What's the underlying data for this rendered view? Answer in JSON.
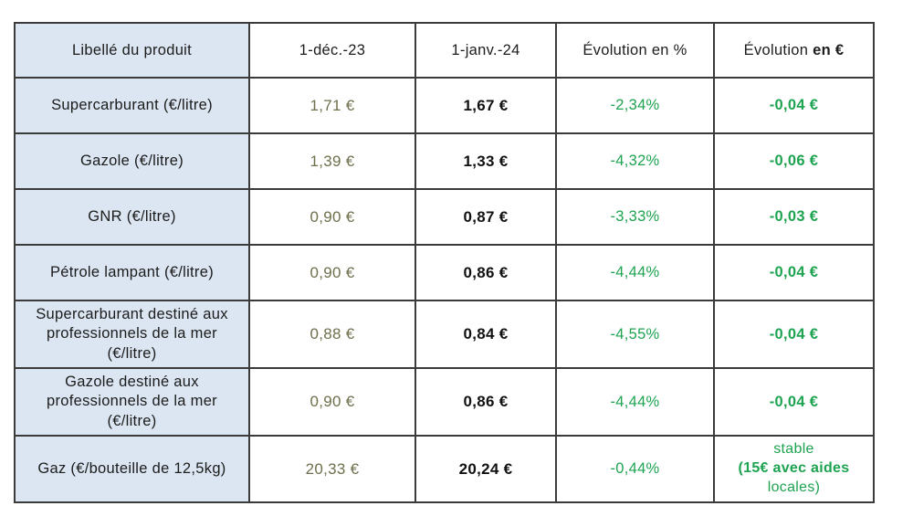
{
  "table": {
    "headers": {
      "product": "Libellé du produit",
      "date1": "1-déc.-23",
      "date2": "1-janv.-24",
      "evolution_pct": "Évolution en %",
      "evolution_eur_prefix": "Évolution ",
      "evolution_eur_bold": "en €"
    },
    "rows": [
      {
        "label": "Supercarburant (€/litre)",
        "price_dec": "1,71 €",
        "price_jan": "1,67 €",
        "evolution_pct": "-2,34%",
        "evolution_eur": "-0,04 €"
      },
      {
        "label": "Gazole (€/litre)",
        "price_dec": "1,39 €",
        "price_jan": "1,33 €",
        "evolution_pct": "-4,32%",
        "evolution_eur": "-0,06 €"
      },
      {
        "label": "GNR (€/litre)",
        "price_dec": "0,90 €",
        "price_jan": "0,87 €",
        "evolution_pct": "-3,33%",
        "evolution_eur": "-0,03 €"
      },
      {
        "label": "Pétrole lampant (€/litre)",
        "price_dec": "0,90 €",
        "price_jan": "0,86 €",
        "evolution_pct": "-4,44%",
        "evolution_eur": "-0,04 €"
      },
      {
        "label": "Supercarburant destiné aux professionnels de la mer (€/litre)",
        "price_dec": "0,88 €",
        "price_jan": "0,84 €",
        "evolution_pct": "-4,55%",
        "evolution_eur": "-0,04 €"
      },
      {
        "label": "Gazole destiné aux professionnels de la mer (€/litre)",
        "price_dec": "0,90 €",
        "price_jan": "0,86 €",
        "evolution_pct": "-4,44%",
        "evolution_eur": "-0,04 €"
      },
      {
        "label": "Gaz (€/bouteille de 12,5kg)",
        "price_dec": "20,33 €",
        "price_jan": "20,24 €",
        "evolution_pct": "-0,44%",
        "evolution_eur_lines": {
          "line1": "stable",
          "line2": "(15€ avec aides",
          "line3": "locales)"
        }
      }
    ]
  },
  "colors": {
    "header_and_product_bg": "#dbe6f2",
    "border": "#3b3b3b",
    "dec_price_text": "#6f6f4c",
    "jan_price_text": "#111111",
    "evolution_text": "#1ea351",
    "page_bg": "#ffffff"
  }
}
